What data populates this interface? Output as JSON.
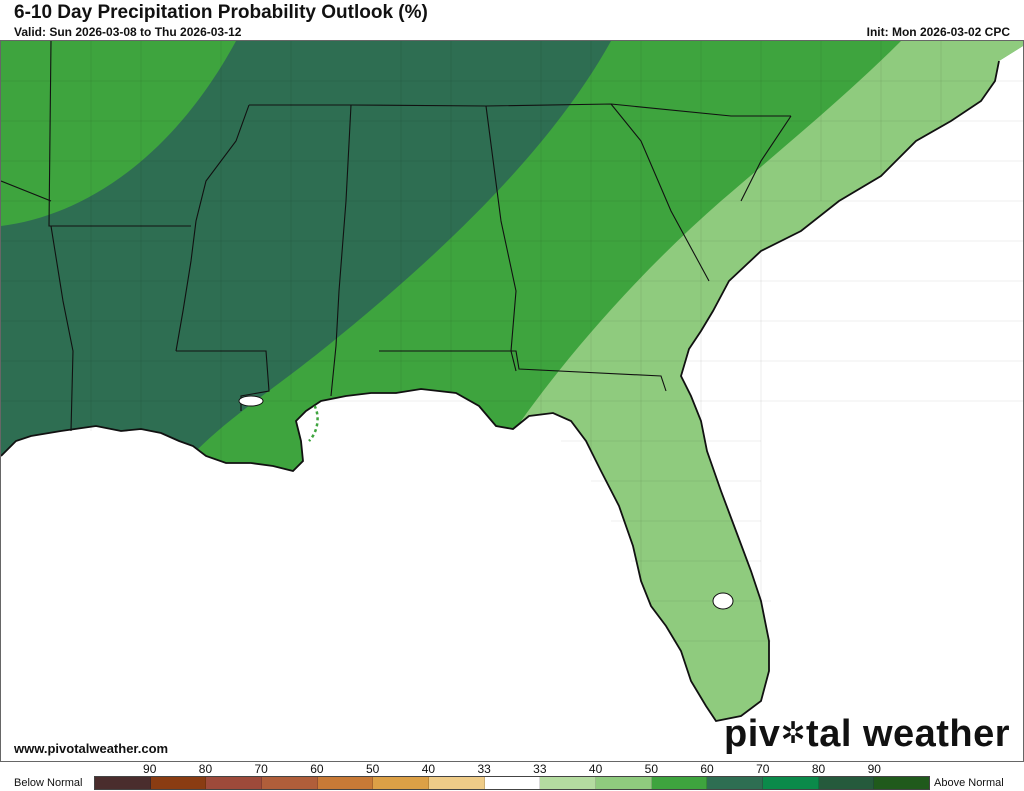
{
  "header": {
    "title": "6-10 Day Precipitation Probability Outlook (%)",
    "valid": "Valid: Sun 2026-03-08 to Thu 2026-03-12",
    "init": "Init: Mon 2026-03-02 CPC"
  },
  "footer": {
    "url": "www.pivotalweather.com",
    "brand_left": "piv",
    "brand_right": "tal weather"
  },
  "map": {
    "colors": {
      "above_70": "#2e6e52",
      "above_60": "#3ea43e",
      "above_50": "#8fcb7e",
      "land_border": "#111111"
    }
  },
  "legend": {
    "below_label": "Below Normal",
    "above_label": "Above Normal",
    "ticks": [
      "90",
      "80",
      "70",
      "60",
      "50",
      "40",
      "33",
      "33",
      "40",
      "50",
      "60",
      "70",
      "80",
      "90"
    ],
    "colors": [
      "#4a2d2d",
      "#8a3c12",
      "#9e4a3a",
      "#b05e3a",
      "#c87a36",
      "#dca046",
      "#efcc88",
      "#ffffff",
      "#b4dca0",
      "#8fcb7e",
      "#3ea43e",
      "#2e6e52",
      "#0b8a4a",
      "#255a3c",
      "#205a1c"
    ]
  }
}
